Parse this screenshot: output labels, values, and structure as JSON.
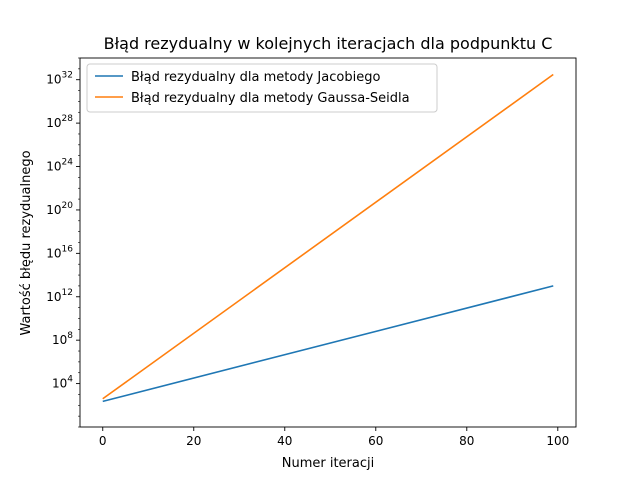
{
  "chart_data": {
    "type": "line",
    "title": "Błąd rezydualny w kolejnych iteracjach dla podpunktu C",
    "xlabel": "Numer iteracji",
    "ylabel": "Wartość błędu rezydualnego",
    "yscale": "log",
    "xlim": [
      -5,
      104
    ],
    "ylim": [
      1,
      1e+34
    ],
    "xticks": [
      0,
      20,
      40,
      60,
      80,
      100
    ],
    "yticks": [
      {
        "base": "10",
        "exp": "4",
        "value": 10000.0
      },
      {
        "base": "10",
        "exp": "8",
        "value": 100000000.0
      },
      {
        "base": "10",
        "exp": "12",
        "value": 1000000000000.0
      },
      {
        "base": "10",
        "exp": "16",
        "value": 1e+16
      },
      {
        "base": "10",
        "exp": "20",
        "value": 1e+20
      },
      {
        "base": "10",
        "exp": "24",
        "value": 1e+24
      },
      {
        "base": "10",
        "exp": "28",
        "value": 1e+28
      },
      {
        "base": "10",
        "exp": "32",
        "value": 1e+32
      }
    ],
    "grid": false,
    "legend": "upper-left",
    "series": [
      {
        "name": "Błąd rezydualny dla metody Jacobiego",
        "color": "#1f77b4",
        "x": [
          0,
          99
        ],
        "y": [
          230,
          10000000000000.0
        ]
      },
      {
        "name": "Błąd rezydualny dla metody Gaussa-Seidla",
        "color": "#ff7f0e",
        "x": [
          0,
          99
        ],
        "y": [
          400,
          3e+32
        ]
      }
    ]
  }
}
